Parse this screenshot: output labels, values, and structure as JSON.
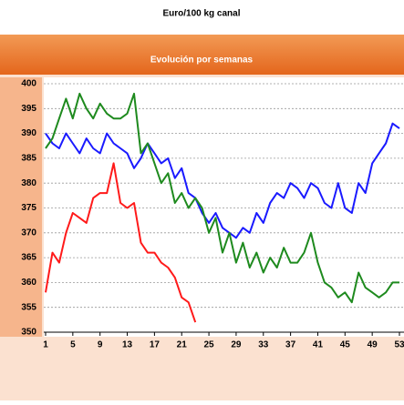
{
  "chart_data": {
    "type": "line",
    "title": "Euro/100 kg canal",
    "subtitle": "Evolución por semanas",
    "x": [
      1,
      2,
      3,
      4,
      5,
      6,
      7,
      8,
      9,
      10,
      11,
      12,
      13,
      14,
      15,
      16,
      17,
      18,
      19,
      20,
      21,
      22,
      23,
      24,
      25,
      26,
      27,
      28,
      29,
      30,
      31,
      32,
      33,
      34,
      35,
      36,
      37,
      38,
      39,
      40,
      41,
      42,
      43,
      44,
      45,
      46,
      47,
      48,
      49,
      50,
      51,
      52,
      53
    ],
    "xlim": [
      1,
      53
    ],
    "xticks": [
      1,
      5,
      9,
      13,
      17,
      21,
      25,
      29,
      33,
      37,
      41,
      45,
      49,
      53
    ],
    "ylim": [
      350,
      400
    ],
    "yticks": [
      350,
      355,
      360,
      365,
      370,
      375,
      380,
      385,
      390,
      395,
      400
    ],
    "grid": true,
    "series": [
      {
        "color": "#1a1aff",
        "values": [
          390,
          388,
          387,
          390,
          388,
          386,
          389,
          387,
          386,
          390,
          388,
          387,
          386,
          383,
          385,
          388,
          386,
          384,
          385,
          381,
          383,
          378,
          377,
          374,
          372,
          374,
          371,
          370,
          369,
          371,
          370,
          374,
          372,
          376,
          378,
          377,
          380,
          379,
          377,
          380,
          379,
          376,
          375,
          380,
          375,
          374,
          380,
          378,
          384,
          386,
          388,
          392,
          391
        ]
      },
      {
        "color": "#1e8a1e",
        "values": [
          387,
          389,
          393,
          397,
          393,
          398,
          395,
          393,
          396,
          394,
          393,
          393,
          394,
          398,
          386,
          388,
          384,
          380,
          382,
          376,
          378,
          375,
          377,
          375,
          370,
          373,
          366,
          370,
          364,
          368,
          363,
          366,
          362,
          365,
          363,
          367,
          364,
          364,
          366,
          370,
          364,
          360,
          359,
          357,
          358,
          356,
          362,
          359,
          358,
          357,
          358,
          360,
          360
        ]
      },
      {
        "color": "#ff1a1a",
        "values": [
          358,
          366,
          364,
          370,
          374,
          373,
          372,
          377,
          378,
          378,
          384,
          376,
          375,
          376,
          368,
          366,
          366,
          364,
          363,
          361,
          357,
          356,
          352,
          null,
          null,
          null,
          null,
          null,
          null,
          null,
          null,
          null,
          null,
          null,
          null,
          null,
          null,
          null,
          null,
          null,
          null,
          null,
          null,
          null,
          null,
          null,
          null,
          null,
          null,
          null,
          null,
          null,
          null
        ]
      }
    ]
  }
}
